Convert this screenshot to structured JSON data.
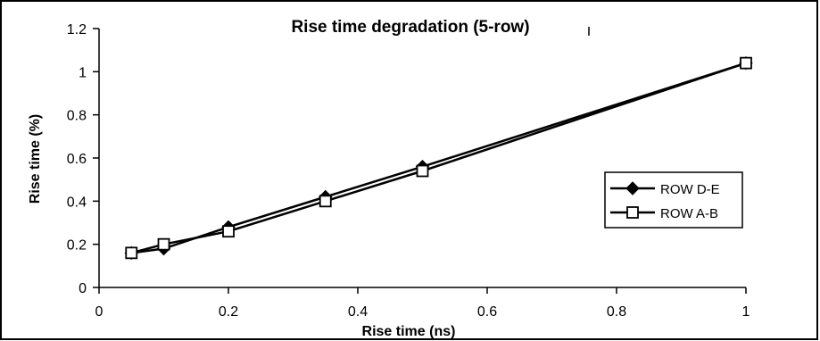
{
  "chart_data": {
    "type": "line",
    "title": "Rise time degradation (5-row)",
    "xlabel": "Rise time (ns)",
    "ylabel": "Rise time (%)",
    "xlim": [
      0,
      1
    ],
    "ylim": [
      0,
      1.2
    ],
    "x_ticks": [
      "0",
      "0.2",
      "0.4",
      "0.6",
      "0.8",
      "1"
    ],
    "y_ticks": [
      "0",
      "0.2",
      "0.4",
      "0.6",
      "0.8",
      "1",
      "1.2"
    ],
    "grid": false,
    "legend": "right",
    "series": [
      {
        "name": "ROW D-E",
        "marker": "diamond",
        "color": "#000000",
        "x": [
          0.05,
          0.1,
          0.2,
          0.35,
          0.5,
          1.0
        ],
        "y": [
          0.16,
          0.18,
          0.28,
          0.42,
          0.56,
          1.04
        ]
      },
      {
        "name": "ROW A-B",
        "marker": "square",
        "color": "#000000",
        "x": [
          0.05,
          0.1,
          0.2,
          0.35,
          0.5,
          1.0
        ],
        "y": [
          0.16,
          0.2,
          0.26,
          0.4,
          0.54,
          1.04
        ]
      }
    ]
  }
}
